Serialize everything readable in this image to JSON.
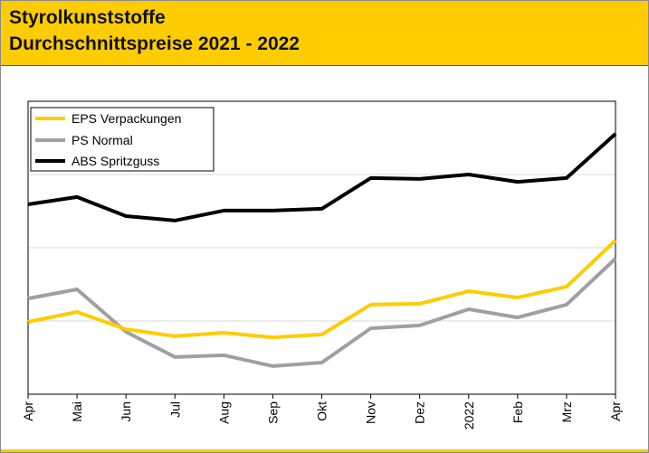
{
  "header": {
    "title_line1": "Styrolkunststoffe",
    "title_line2": "Durchschnittspreise 2021 - 2022"
  },
  "colors": {
    "header_bg": "#ffcc00",
    "eps": "#ffcc00",
    "ps": "#a0a0a0",
    "abs": "#000000",
    "grid": "#d9d9d9"
  },
  "chart_data": {
    "type": "line",
    "title": "Styrolkunststoffe Durchschnittspreise 2021 - 2022",
    "xlabel": "",
    "ylabel": "",
    "ylim": [
      0,
      100
    ],
    "grid": true,
    "legend_position": "top-left",
    "categories": [
      "Apr",
      "Mai",
      "Jun",
      "Jul",
      "Aug",
      "Sep",
      "Okt",
      "Nov",
      "Dez",
      "2022",
      "Feb",
      "Mrz",
      "Apr"
    ],
    "series": [
      {
        "name": "EPS Verpackungen",
        "color": "#ffcc00",
        "values": [
          24.7,
          28.1,
          22.2,
          19.8,
          21.0,
          19.4,
          20.4,
          30.6,
          30.9,
          35.2,
          33.0,
          36.7,
          52.5
        ]
      },
      {
        "name": "PS Normal",
        "color": "#a0a0a0",
        "values": [
          32.7,
          35.8,
          21.3,
          12.7,
          13.3,
          9.6,
          10.8,
          22.5,
          23.5,
          29.0,
          26.2,
          30.6,
          46.3
        ]
      },
      {
        "name": "ABS Spritzguss",
        "color": "#000000",
        "values": [
          64.8,
          67.3,
          60.8,
          59.3,
          62.7,
          62.7,
          63.3,
          73.8,
          73.5,
          75.0,
          72.5,
          73.8,
          88.9
        ]
      }
    ]
  }
}
